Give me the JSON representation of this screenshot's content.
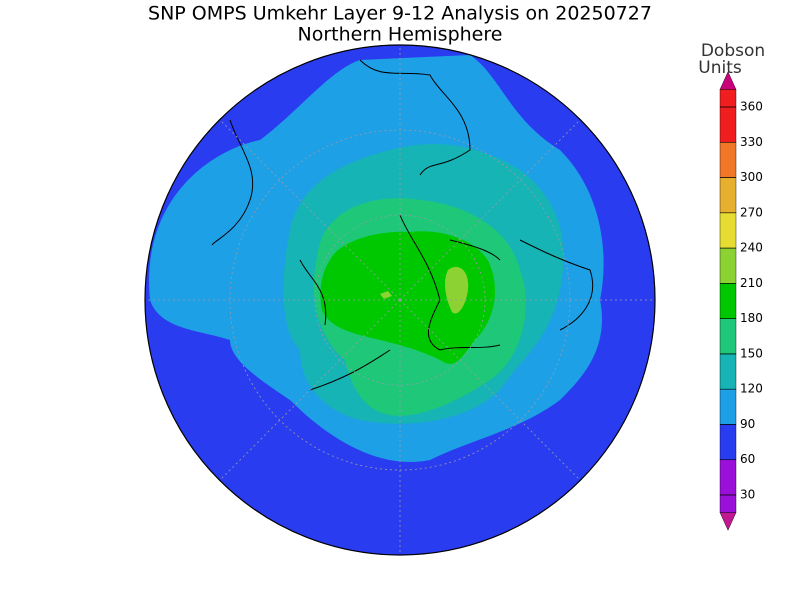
{
  "header": {
    "title": "SNP OMPS Umkehr Layer 9-12 Analysis on 20250727",
    "subtitle": "Northern Hemisphere"
  },
  "colorbar": {
    "label_lines": [
      "Dobson",
      "Units"
    ],
    "ticks": [
      30,
      60,
      90,
      120,
      150,
      180,
      210,
      240,
      270,
      300,
      330,
      360
    ],
    "colors": [
      "#9b10d8",
      "#2a3cf0",
      "#1ea0e6",
      "#16b4b4",
      "#1ec878",
      "#00c800",
      "#8cd232",
      "#e6dc32",
      "#e6af2d",
      "#f07828",
      "#f01e1e"
    ],
    "under_color": "#c01890",
    "over_color": "#c8007a"
  }
}
